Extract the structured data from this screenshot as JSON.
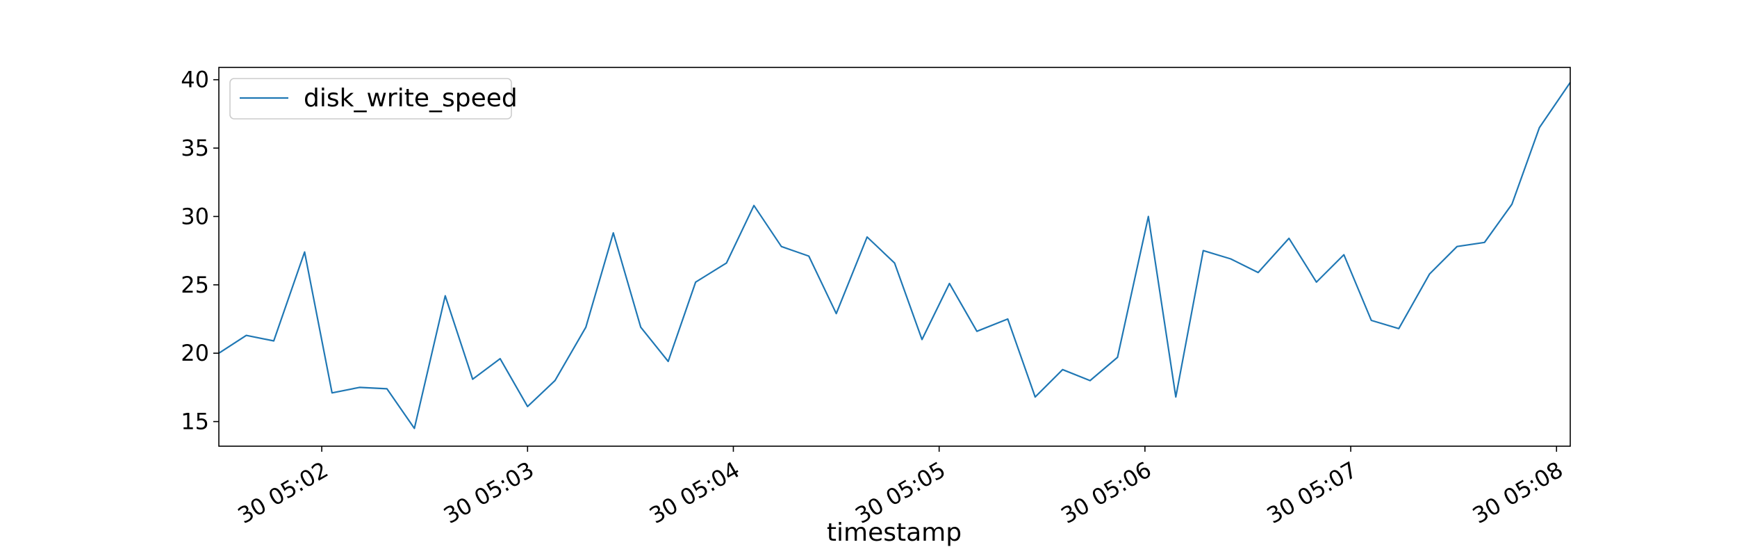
{
  "chart_data": {
    "type": "line",
    "title": "",
    "xlabel": "timestamp",
    "ylabel": "",
    "ylim": [
      13.2,
      40.9
    ],
    "x_tick_labels": [
      "30 05:02",
      "30 05:03",
      "30 05:04",
      "30 05:05",
      "30 05:06",
      "30 05:07",
      "30 05:08"
    ],
    "y_ticks": [
      15,
      20,
      25,
      30,
      35,
      40
    ],
    "grid": false,
    "legend": {
      "position": "top-left",
      "entries": [
        "disk_write_speed"
      ]
    },
    "series": [
      {
        "name": "disk_write_speed",
        "color": "#1f77b4",
        "x": [
          "05:01:30",
          "05:01:38",
          "05:01:46",
          "05:01:55",
          "05:02:03",
          "05:02:11",
          "05:02:19",
          "05:02:27",
          "05:02:36",
          "05:02:44",
          "05:02:52",
          "05:03:00",
          "05:03:08",
          "05:03:17",
          "05:03:25",
          "05:03:33",
          "05:03:41",
          "05:03:49",
          "05:03:58",
          "05:04:06",
          "05:04:14",
          "05:04:22",
          "05:04:30",
          "05:04:39",
          "05:04:47",
          "05:04:55",
          "05:05:03",
          "05:05:11",
          "05:05:20",
          "05:05:28",
          "05:05:36",
          "05:05:44",
          "05:05:52",
          "05:06:01",
          "05:06:09",
          "05:06:17",
          "05:06:25",
          "05:06:33",
          "05:06:42",
          "05:06:50",
          "05:06:58",
          "05:07:06",
          "05:07:14",
          "05:07:23",
          "05:07:31",
          "05:07:39",
          "05:07:47",
          "05:07:55",
          "05:08:04"
        ],
        "values": [
          20.0,
          21.3,
          20.9,
          27.4,
          17.1,
          17.5,
          17.4,
          14.5,
          24.2,
          18.1,
          19.6,
          16.1,
          18.0,
          21.9,
          28.8,
          21.9,
          19.4,
          25.2,
          26.6,
          30.8,
          27.8,
          27.1,
          22.9,
          28.5,
          26.6,
          21.0,
          25.1,
          21.6,
          22.5,
          16.8,
          18.8,
          18.0,
          19.7,
          30.0,
          16.8,
          27.5,
          26.9,
          25.9,
          28.4,
          25.2,
          27.2,
          22.4,
          21.8,
          25.8,
          27.8,
          28.1,
          30.9,
          36.5,
          39.8
        ]
      }
    ]
  }
}
